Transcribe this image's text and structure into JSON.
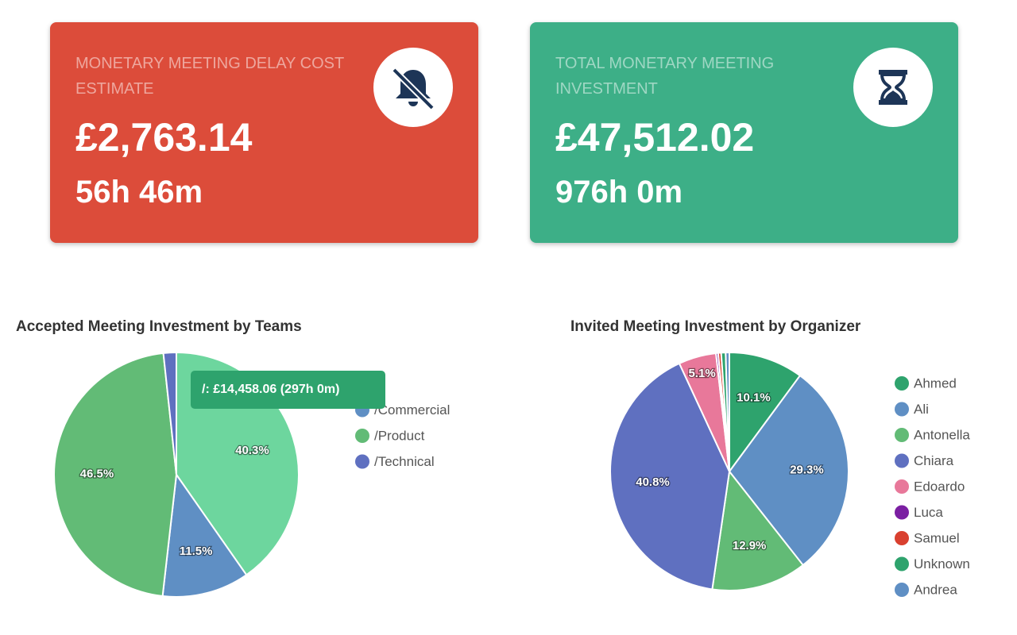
{
  "cards": [
    {
      "title": "MONETARY MEETING DELAY COST ESTIMATE",
      "amount": "£2,763.14",
      "duration": "56h 46m",
      "color": "#dc4c3a"
    },
    {
      "title": "TOTAL MONETARY MEETING INVESTMENT",
      "amount": "£47,512.02",
      "duration": "976h 0m",
      "color": "#3daf87"
    }
  ],
  "chart_data": [
    {
      "type": "pie",
      "title": "Accepted Meeting Investment by Teams",
      "categories": [
        "/",
        "/Commercial",
        "/Product",
        "/Technical"
      ],
      "values": [
        40.3,
        11.5,
        46.5,
        1.7
      ],
      "value_labels": [
        "40.3%",
        "11.5%",
        "46.5%",
        null
      ],
      "colors": [
        "#6dd69e",
        "#5f8fc4",
        "#62bb76",
        "#5f70c0"
      ],
      "tooltip": "/:  £14,458.06 (297h 0m)"
    },
    {
      "type": "pie",
      "title": "Invited Meeting Investment by Organizer",
      "categories": [
        "Ahmed",
        "Ali",
        "Antonella",
        "Chiara",
        "Edoardo",
        "Luca",
        "Samuel",
        "Unknown",
        "Andrea"
      ],
      "values": [
        10.1,
        29.3,
        12.9,
        40.8,
        5.1,
        0.3,
        0.4,
        0.6,
        0.5
      ],
      "value_labels": [
        "10.1%",
        "29.3%",
        "12.9%",
        "40.8%",
        "5.1%",
        null,
        null,
        null,
        null
      ],
      "colors": [
        "#2ea36d",
        "#5f8fc4",
        "#62bb76",
        "#5f70c0",
        "#e8789a",
        "#7b1fa2",
        "#d9402f",
        "#2ea36d",
        "#5f8fc4"
      ]
    }
  ]
}
